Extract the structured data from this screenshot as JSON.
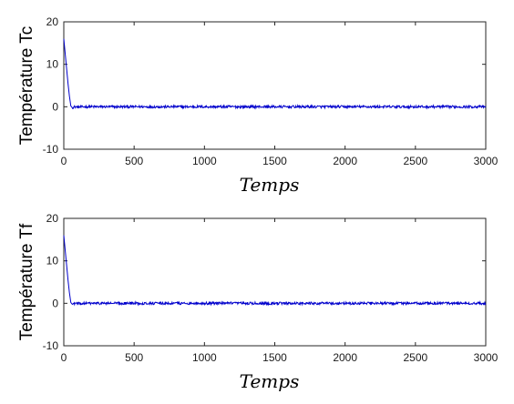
{
  "chart_data": [
    {
      "type": "line",
      "title": "",
      "xlabel": "Temps",
      "ylabel": "Température Tc",
      "xlim": [
        0,
        3000
      ],
      "ylim": [
        -10,
        20
      ],
      "xticks": [
        0,
        500,
        1000,
        1500,
        2000,
        2500,
        3000
      ],
      "yticks": [
        -10,
        0,
        10,
        20
      ],
      "grid": false,
      "legend": "none",
      "series": [
        {
          "color": "#0000cc",
          "x": [
            0,
            10,
            20,
            30,
            40,
            50,
            60,
            80,
            100,
            150,
            200,
            300,
            500,
            1000,
            1500,
            2000,
            2500,
            3000
          ],
          "y": [
            16,
            12.5,
            9,
            5.5,
            2.5,
            0.2,
            -0.2,
            0,
            -0.1,
            0,
            0,
            0,
            0,
            0,
            0,
            0,
            0,
            0
          ],
          "noise_amplitude": 0.3
        }
      ]
    },
    {
      "type": "line",
      "title": "",
      "xlabel": "Temps",
      "ylabel": "Température Tf",
      "xlim": [
        0,
        3000
      ],
      "ylim": [
        -10,
        20
      ],
      "xticks": [
        0,
        500,
        1000,
        1500,
        2000,
        2500,
        3000
      ],
      "yticks": [
        -10,
        0,
        10,
        20
      ],
      "grid": false,
      "legend": "none",
      "series": [
        {
          "color": "#0000cc",
          "x": [
            0,
            10,
            20,
            30,
            40,
            50,
            60,
            80,
            100,
            150,
            200,
            300,
            500,
            1000,
            1500,
            2000,
            2500,
            3000
          ],
          "y": [
            16,
            12.5,
            9,
            5.5,
            2.5,
            0.2,
            -0.2,
            0,
            -0.1,
            0,
            0,
            0,
            0,
            0,
            0,
            0,
            0,
            0
          ],
          "noise_amplitude": 0.3
        }
      ]
    }
  ]
}
